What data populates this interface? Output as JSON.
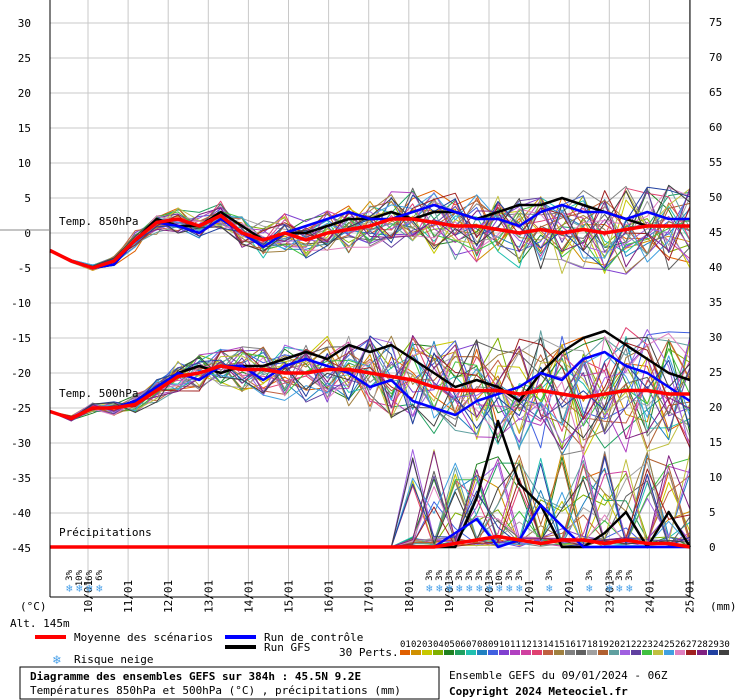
{
  "chart_data": {
    "type": "line",
    "left_axis": {
      "unit_label": "(°C)",
      "ticks": [
        "30",
        "25",
        "20",
        "15",
        "10",
        "5",
        "0",
        "-5",
        "-10",
        "-15",
        "-20",
        "-25",
        "-30",
        "-35",
        "-40",
        "-45"
      ],
      "ylim": [
        -45,
        30
      ]
    },
    "right_axis": {
      "unit_label": "(mm)",
      "ticks": [
        "75",
        "70",
        "65",
        "60",
        "55",
        "50",
        "45",
        "40",
        "35",
        "30",
        "25",
        "20",
        "15",
        "10",
        "5",
        "0"
      ],
      "ylim": [
        0,
        75
      ]
    },
    "x_ticks": [
      "10/01",
      "11/01",
      "12/01",
      "13/01",
      "14/01",
      "15/01",
      "16/01",
      "17/01",
      "18/01",
      "19/01",
      "20/01",
      "21/01",
      "22/01",
      "23/01",
      "24/01",
      "25/01"
    ],
    "panel_labels": {
      "t850": "Temp. 850hPa",
      "t500": "Temp. 500hPa",
      "precip": "Précipitations"
    },
    "altitude": "Alt. 145m",
    "snow_risk": {
      "group1": [
        "3%",
        "10%",
        "16%",
        "6%"
      ],
      "group2": [
        "3%",
        "3%",
        "3%",
        "3%",
        "3%",
        "3%",
        "3%",
        "10%",
        "3%",
        "3%"
      ],
      "single1": "3%",
      "single2": "3%",
      "group3": [
        "3%",
        "3%",
        "3%"
      ]
    },
    "legend": {
      "mean": "Moyenne des scénarios",
      "control": "Run de contrôle",
      "gfs": "Run GFS",
      "snow": "Risque neige",
      "perts": "30 Perts.",
      "pert_numbers": [
        "01",
        "02",
        "03",
        "04",
        "05",
        "06",
        "07",
        "08",
        "09",
        "10",
        "11",
        "12",
        "13",
        "14",
        "15",
        "16",
        "17",
        "18",
        "19",
        "20",
        "21",
        "22",
        "23",
        "24",
        "25",
        "26",
        "27",
        "28",
        "29",
        "30"
      ],
      "colors": {
        "mean": "#ff0000",
        "control": "#0000ff",
        "gfs": "#000000"
      }
    },
    "series": [
      {
        "name": "Moyenne des scénarios",
        "panel": "t850",
        "values": [
          -2.5,
          -4,
          -5,
          -4,
          -1,
          1.5,
          2,
          1,
          2.5,
          0,
          -1,
          0,
          -1,
          0,
          0.5,
          1,
          2,
          2,
          1.5,
          1,
          1,
          0.5,
          0,
          0.5,
          0,
          0.5,
          0,
          0.5,
          1,
          1,
          1
        ]
      },
      {
        "name": "Run de contrôle",
        "panel": "t850",
        "values": [
          -2.5,
          -4,
          -5,
          -4.5,
          -1,
          1.5,
          1,
          0,
          2,
          0,
          -2,
          0,
          1,
          2,
          3,
          2,
          2,
          3,
          4,
          3,
          2,
          2,
          1,
          3,
          4,
          3,
          3,
          2,
          3,
          2,
          2
        ]
      },
      {
        "name": "Run GFS",
        "panel": "t850",
        "values": [
          -2.5,
          -4,
          -5,
          -4.5,
          -1,
          2,
          1,
          1,
          3,
          1,
          -1,
          0,
          0,
          1,
          2,
          2,
          3,
          2,
          3,
          3,
          2,
          3,
          4,
          4,
          5,
          4,
          3,
          2,
          1,
          1,
          1
        ]
      },
      {
        "name": "Moyenne des scénarios",
        "panel": "t500",
        "values": [
          -25.5,
          -26.5,
          -25,
          -25,
          -24.5,
          -22.5,
          -20.5,
          -20,
          -19,
          -19.5,
          -19.5,
          -20,
          -20,
          -19.5,
          -19.5,
          -20,
          -20.5,
          -21,
          -22,
          -22.5,
          -22.5,
          -22.5,
          -23,
          -22.5,
          -23,
          -23.5,
          -23,
          -22.5,
          -22.5,
          -23,
          -23
        ]
      },
      {
        "name": "Run de contrôle",
        "panel": "t500",
        "values": [
          -25.5,
          -26.5,
          -25,
          -25,
          -24,
          -22,
          -20,
          -21,
          -19,
          -19,
          -21,
          -19,
          -18,
          -19,
          -20,
          -22,
          -21,
          -24,
          -25,
          -26,
          -24,
          -23,
          -22,
          -20,
          -21,
          -18,
          -17,
          -19,
          -20,
          -22,
          -24
        ]
      },
      {
        "name": "Run GFS",
        "panel": "t500",
        "values": [
          -25.5,
          -26.5,
          -25,
          -25,
          -24,
          -22,
          -20,
          -19,
          -20,
          -19,
          -19,
          -18,
          -17,
          -18,
          -16,
          -17,
          -16,
          -18,
          -20,
          -22,
          -21,
          -22,
          -24,
          -20,
          -17,
          -15,
          -14,
          -16,
          -18,
          -20,
          -21
        ]
      },
      {
        "name": "Moyenne des scénarios",
        "panel": "precip",
        "values": [
          0,
          0,
          0,
          0,
          0,
          0,
          0,
          0,
          0,
          0,
          0,
          0,
          0,
          0,
          0,
          0,
          0,
          0,
          0,
          0.5,
          1,
          1.5,
          1,
          0.5,
          1,
          1,
          0.5,
          1,
          0.5,
          0.5,
          0
        ]
      },
      {
        "name": "Run de contrôle",
        "panel": "precip",
        "values": [
          0,
          0,
          0,
          0,
          0,
          0,
          0,
          0,
          0,
          0,
          0,
          0,
          0,
          0,
          0,
          0,
          0,
          0,
          0,
          2,
          4,
          0,
          1,
          6,
          3,
          0,
          0,
          0,
          0,
          0,
          0
        ]
      },
      {
        "name": "Run GFS",
        "panel": "precip",
        "values": [
          0,
          0,
          0,
          0,
          0,
          0,
          0,
          0,
          0,
          0,
          0,
          0,
          0,
          0,
          0,
          0,
          0,
          0,
          0,
          0,
          7,
          18,
          9,
          6,
          0,
          0,
          2,
          5,
          0,
          5,
          0
        ]
      }
    ],
    "footer": {
      "title": "Diagramme des ensembles GEFS sur 384h : 45.5N 9.2E",
      "subtitle": "Températures 850hPa et 500hPa (°C) , précipitations (mm)",
      "run": "Ensemble GEFS du 09/01/2024 - 06Z",
      "copyright": "Copyright 2024 Meteociel.fr"
    }
  }
}
